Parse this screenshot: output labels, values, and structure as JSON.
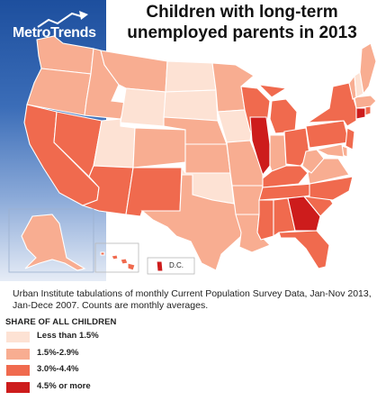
{
  "title": "Children with long-term unemployed parents in 2013",
  "brand": {
    "part1": "Metro",
    "part2": "Trends"
  },
  "dc_label": "D.C.",
  "source_note": "Urban Institute tabulations of monthly Current Population Survey Data, Jan-Nov 2013, Jan-Dece 2007. Counts are monthly averages.",
  "legend": {
    "heading": "SHARE OF ALL CHILDREN",
    "items": [
      {
        "label": "Less than 1.5%",
        "color": "#fde2d4"
      },
      {
        "label": "1.5%-2.9%",
        "color": "#f8ad91"
      },
      {
        "label": "3.0%-4.4%",
        "color": "#f06a4e"
      },
      {
        "label": "4.5% or more",
        "color": "#cd1c1c"
      }
    ]
  },
  "states": {
    "WA": 2,
    "OR": 2,
    "CA": 3,
    "NV": 3,
    "ID": 2,
    "MT": 2,
    "WY": 1,
    "UT": 1,
    "AZ": 3,
    "NM": 3,
    "CO": 2,
    "ND": 1,
    "SD": 1,
    "NE": 2,
    "KS": 2,
    "OK": 1,
    "TX": 2,
    "MN": 2,
    "IA": 1,
    "MO": 2,
    "AR": 2,
    "LA": 2,
    "WI": 3,
    "IL": 4,
    "MI": 3,
    "IN": 2,
    "OH": 3,
    "KY": 3,
    "TN": 3,
    "MS": 3,
    "AL": 3,
    "GA": 4,
    "FL": 3,
    "SC": 3,
    "NC": 3,
    "VA": 2,
    "WV": 2,
    "PA": 3,
    "NY": 3,
    "ME": 2,
    "VT": 2,
    "NH": 1,
    "MA": 2,
    "RI": 3,
    "CT": 4,
    "NJ": 3,
    "DE": 2,
    "MD": 2,
    "AK": 2,
    "HI": 3,
    "DC": 4
  }
}
